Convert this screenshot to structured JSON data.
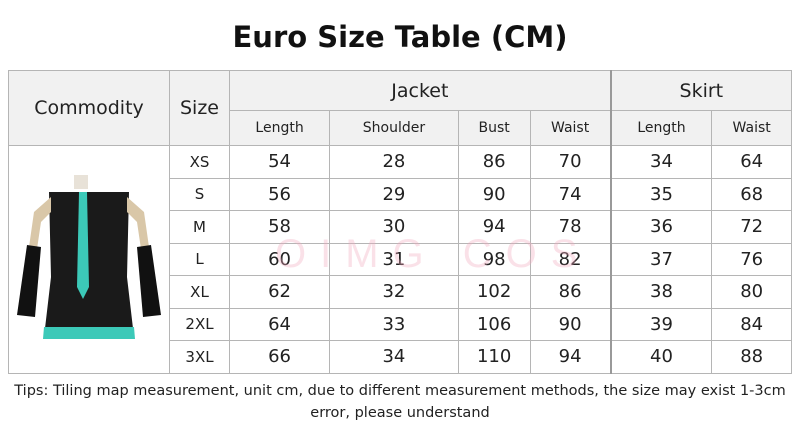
{
  "title": "Euro Size Table (CM)",
  "headers": {
    "commodity": "Commodity",
    "size": "Size",
    "jacket": "Jacket",
    "skirt": "Skirt",
    "sub": [
      "Length",
      "Shoulder",
      "Bust",
      "Waist",
      "Length",
      "Waist"
    ]
  },
  "rows": [
    [
      "XS",
      "54",
      "28",
      "86",
      "70",
      "34",
      "64"
    ],
    [
      "S",
      "56",
      "29",
      "90",
      "74",
      "35",
      "68"
    ],
    [
      "M",
      "58",
      "30",
      "94",
      "78",
      "36",
      "72"
    ],
    [
      "L",
      "60",
      "31",
      "98",
      "82",
      "37",
      "76"
    ],
    [
      "XL",
      "62",
      "32",
      "102",
      "86",
      "38",
      "80"
    ],
    [
      "2XL",
      "64",
      "33",
      "106",
      "90",
      "39",
      "84"
    ],
    [
      "3XL",
      "66",
      "34",
      "110",
      "94",
      "40",
      "88"
    ]
  ],
  "watermark": "OIMG COS",
  "tips": "Tips: Tiling map measurement, unit cm, due to different measurement methods, the size may exist 1-3cm error, please understand",
  "colors": {
    "header_bg": "#f1f1f1",
    "border": "#b5b5b5",
    "tie": "#3cc9b8"
  }
}
